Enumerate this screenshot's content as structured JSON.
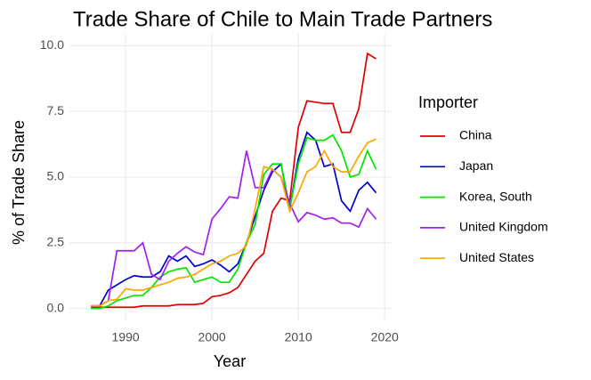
{
  "chart_data": {
    "type": "line",
    "title": "Trade Share of Chile to Main Trade Partners",
    "x_label": "Year",
    "y_label": "% of Trade Share",
    "legend_title": "Importer",
    "legend_position": "right",
    "grid": true,
    "x": [
      1986,
      1987,
      1988,
      1989,
      1990,
      1991,
      1992,
      1993,
      1994,
      1995,
      1996,
      1997,
      1998,
      1999,
      2000,
      2001,
      2002,
      2003,
      2004,
      2005,
      2006,
      2007,
      2008,
      2009,
      2010,
      2011,
      2012,
      2013,
      2014,
      2015,
      2016,
      2017,
      2018,
      2019
    ],
    "xlim": [
      1983.5,
      2020.8
    ],
    "xticks": [
      1990,
      2000,
      2010,
      2020
    ],
    "ylim": [
      -0.45,
      10.45
    ],
    "yticks": [
      {
        "value": 0,
        "label": "0.0"
      },
      2.5,
      {
        "value": 5,
        "label": "5.0"
      },
      7.5,
      {
        "value": 10,
        "label": "10.0"
      }
    ],
    "series": [
      {
        "name": "China",
        "color": "#e00000",
        "values": [
          0.05,
          0.05,
          0.05,
          0.05,
          0.05,
          0.05,
          0.1,
          0.1,
          0.1,
          0.1,
          0.15,
          0.15,
          0.15,
          0.2,
          0.45,
          0.5,
          0.6,
          0.8,
          1.3,
          1.8,
          2.1,
          3.7,
          4.2,
          4.1,
          6.9,
          7.9,
          7.85,
          7.8,
          7.8,
          6.7,
          6.7,
          7.6,
          9.7,
          9.5
        ]
      },
      {
        "name": "Japan",
        "color": "#0000cd",
        "values": [
          0.1,
          0.1,
          0.7,
          0.9,
          1.1,
          1.25,
          1.2,
          1.2,
          1.4,
          2.0,
          1.8,
          2.0,
          1.6,
          1.7,
          1.85,
          1.65,
          1.4,
          1.7,
          2.5,
          3.5,
          4.5,
          5.2,
          5.5,
          3.8,
          5.7,
          6.7,
          6.4,
          5.4,
          5.5,
          4.1,
          3.7,
          4.5,
          4.8,
          4.4
        ]
      },
      {
        "name": "Korea, South",
        "color": "#00e600",
        "values": [
          0,
          0,
          0.1,
          0.3,
          0.4,
          0.5,
          0.5,
          0.8,
          1.2,
          1.4,
          1.5,
          1.55,
          1.0,
          1.1,
          1.2,
          1.0,
          1.0,
          1.5,
          2.5,
          3.2,
          5.1,
          5.5,
          5.5,
          3.8,
          5.5,
          6.5,
          6.4,
          6.4,
          6.6,
          6.0,
          5.0,
          5.1,
          6.0,
          5.3
        ]
      },
      {
        "name": "United Kingdom",
        "color": "#a020f0",
        "values": [
          0.1,
          0.1,
          0.3,
          2.2,
          2.2,
          2.2,
          2.5,
          1.3,
          1.1,
          1.8,
          2.1,
          2.35,
          2.15,
          2.05,
          3.4,
          3.8,
          4.25,
          4.2,
          6.0,
          4.6,
          4.6,
          5.3,
          5.0,
          4.0,
          3.3,
          3.65,
          3.55,
          3.4,
          3.45,
          3.25,
          3.25,
          3.1,
          3.8,
          3.4
        ]
      },
      {
        "name": "United States",
        "color": "#ffa500",
        "values": [
          0.1,
          0.1,
          0.3,
          0.35,
          0.75,
          0.7,
          0.7,
          0.8,
          0.9,
          1.0,
          1.15,
          1.2,
          1.3,
          1.5,
          1.7,
          1.8,
          2.0,
          2.1,
          2.4,
          3.8,
          5.4,
          5.3,
          5.0,
          3.7,
          4.4,
          5.2,
          5.4,
          6.0,
          5.4,
          5.2,
          5.2,
          5.8,
          6.3,
          6.45
        ]
      }
    ]
  }
}
